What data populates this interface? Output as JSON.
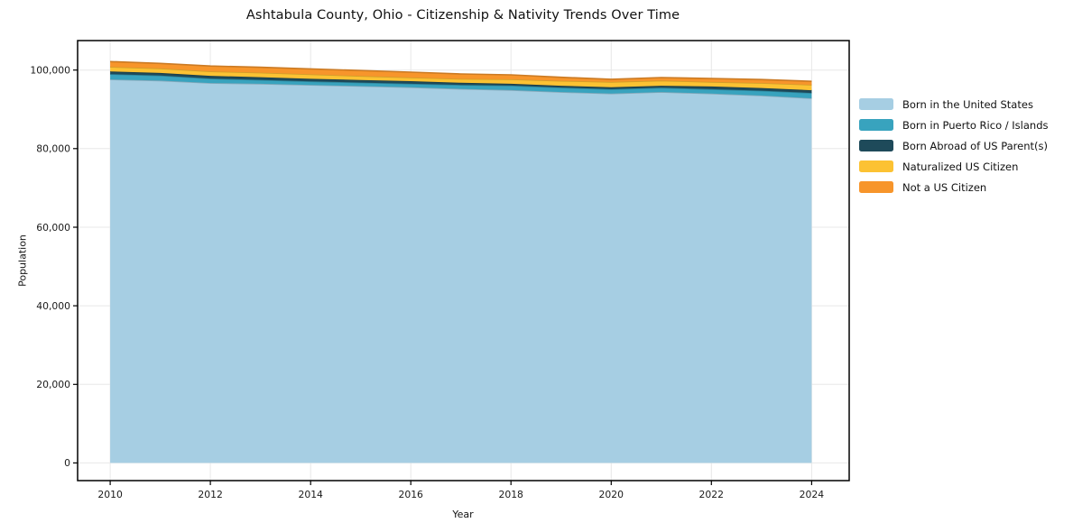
{
  "figure": {
    "background": "#ffffff",
    "spine_color": "#000000",
    "grid_color": "#e8e8e8",
    "text_color": "#1a1a1a"
  },
  "chart_data": {
    "type": "area",
    "stacked": true,
    "title": "Ashtabula County, Ohio - Citizenship & Nativity Trends Over Time",
    "xlabel": "Year",
    "ylabel": "Population",
    "grid": true,
    "legend_position": "right",
    "xlim": [
      2009.35,
      2024.75
    ],
    "ylim": [
      -4500,
      107500
    ],
    "x": [
      2010,
      2011,
      2012,
      2013,
      2014,
      2015,
      2016,
      2017,
      2018,
      2019,
      2020,
      2021,
      2022,
      2023,
      2024
    ],
    "series": [
      {
        "name": "Born in the United States",
        "color": "#a6cee3",
        "values": [
          97600,
          97300,
          96700,
          96500,
          96200,
          95900,
          95600,
          95200,
          94900,
          94400,
          94000,
          94400,
          94000,
          93500,
          92800
        ]
      },
      {
        "name": "Born in Puerto Rico / Islands",
        "color": "#38a3be",
        "values": [
          1370,
          1300,
          1140,
          1000,
          900,
          900,
          900,
          1000,
          1140,
          1140,
          1140,
          1100,
          1140,
          1250,
          1370
        ]
      },
      {
        "name": "Born Abroad of US Parent(s)",
        "color": "#1e4a5a",
        "values": [
          680,
          650,
          680,
          680,
          680,
          680,
          680,
          550,
          460,
          460,
          460,
          500,
          680,
          680,
          680
        ]
      },
      {
        "name": "Naturalized US Citizen",
        "color": "#fcc233",
        "values": [
          1140,
          1150,
          1140,
          1140,
          1140,
          1000,
          920,
          1000,
          1140,
          1250,
          1370,
          1300,
          1140,
          1250,
          1370
        ]
      },
      {
        "name": "Not a US Citizen",
        "color": "#f7952b",
        "values": [
          1370,
          1300,
          1360,
          1380,
          1370,
          1400,
          1370,
          1250,
          1140,
          900,
          680,
          800,
          900,
          900,
          900
        ]
      }
    ],
    "x_ticks": {
      "values": [
        2010,
        2012,
        2014,
        2016,
        2018,
        2020,
        2022,
        2024
      ],
      "labels": [
        "2010",
        "2012",
        "2014",
        "2016",
        "2018",
        "2020",
        "2022",
        "2024"
      ]
    },
    "y_ticks": {
      "values": [
        0,
        20000,
        40000,
        60000,
        80000,
        100000
      ],
      "labels": [
        "0",
        "20,000",
        "40,000",
        "60,000",
        "80,000",
        "100,000"
      ]
    }
  }
}
